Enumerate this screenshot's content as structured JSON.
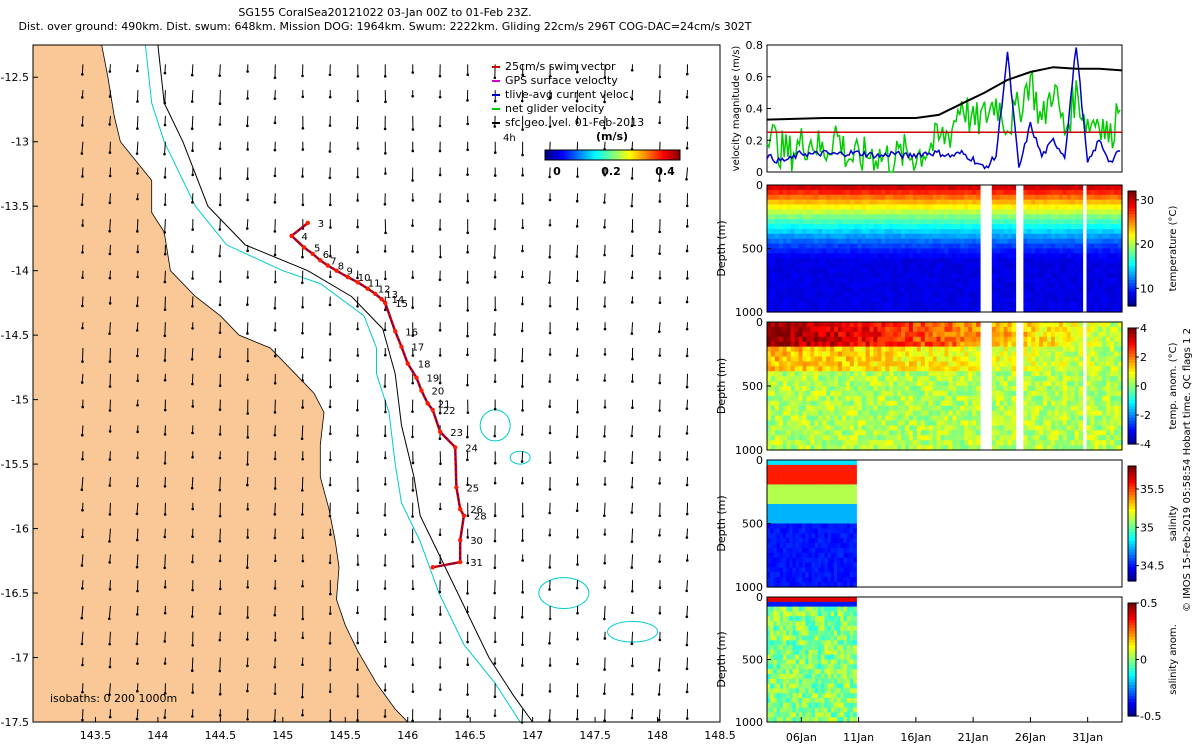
{
  "title": {
    "line1": "SG155 CoralSea20121022 03-Jan 00Z to 01-Feb 23Z.",
    "line2": "Dist. over ground: 490km. Dist. swum: 648km. Mission DOG: 1964km. Swum: 2222km. Gliding 22cm/s 296T COG-DAC=24cm/s 302T"
  },
  "footer_credit": "© IMOS 15-Feb-2019 05:58:54 Hobart time. QC flags 1 2",
  "chart_data": [
    {
      "type": "scatter",
      "name": "map",
      "xlim": [
        143.0,
        148.5
      ],
      "ylim": [
        -17.5,
        -12.25
      ],
      "x_ticks": [
        "143.5",
        "144",
        "144.5",
        "145",
        "145.5",
        "146",
        "146.5",
        "147",
        "147.5",
        "148",
        "148.5"
      ],
      "y_ticks": [
        "-12.5",
        "-13",
        "-13.5",
        "-14",
        "-14.5",
        "-15",
        "-15.5",
        "-16",
        "-16.5",
        "-17",
        "-17.5"
      ],
      "legend": [
        {
          "label": "25cm/s swim vector",
          "color": "#cc0000"
        },
        {
          "label": "GPS surface velocity",
          "color": "#cc00cc"
        },
        {
          "label": "tlive-avg current veloc.",
          "color": "#0000cc"
        },
        {
          "label": "net glider velocity",
          "color": "#00cc00"
        },
        {
          "label": "sfc geo. vel. 01-Feb-2013",
          "color": "#000000"
        }
      ],
      "legend_note": "4h",
      "colorbar": {
        "label": "(m/s)",
        "ticks": [
          "0",
          "0.2",
          "0.4"
        ],
        "range": [
          0,
          0.5
        ]
      },
      "isobath_label": "isobaths: 0   200  1000m",
      "track": [
        {
          "lon": 145.2,
          "lat": -13.63,
          "label": "3"
        },
        {
          "lon": 145.07,
          "lat": -13.73,
          "label": "4"
        },
        {
          "lon": 145.17,
          "lat": -13.82,
          "label": "5"
        },
        {
          "lon": 145.24,
          "lat": -13.87,
          "label": "6"
        },
        {
          "lon": 145.3,
          "lat": -13.92,
          "label": "7"
        },
        {
          "lon": 145.36,
          "lat": -13.96,
          "label": "8"
        },
        {
          "lon": 145.43,
          "lat": -14.0,
          "label": "9"
        },
        {
          "lon": 145.52,
          "lat": -14.05,
          "label": "10"
        },
        {
          "lon": 145.6,
          "lat": -14.09,
          "label": "11"
        },
        {
          "lon": 145.68,
          "lat": -14.14,
          "label": "12"
        },
        {
          "lon": 145.74,
          "lat": -14.18,
          "label": "13"
        },
        {
          "lon": 145.79,
          "lat": -14.22,
          "label": "14"
        },
        {
          "lon": 145.82,
          "lat": -14.25,
          "label": "15"
        },
        {
          "lon": 145.9,
          "lat": -14.47,
          "label": "16"
        },
        {
          "lon": 145.95,
          "lat": -14.59,
          "label": "17"
        },
        {
          "lon": 146.0,
          "lat": -14.72,
          "label": "18"
        },
        {
          "lon": 146.07,
          "lat": -14.83,
          "label": "19"
        },
        {
          "lon": 146.11,
          "lat": -14.93,
          "label": "20"
        },
        {
          "lon": 146.16,
          "lat": -15.03,
          "label": "21"
        },
        {
          "lon": 146.2,
          "lat": -15.08,
          "label": "22"
        },
        {
          "lon": 146.26,
          "lat": -15.25,
          "label": "23"
        },
        {
          "lon": 146.38,
          "lat": -15.37,
          "label": "24"
        },
        {
          "lon": 146.39,
          "lat": -15.68,
          "label": "25"
        },
        {
          "lon": 146.42,
          "lat": -15.85,
          "label": "26"
        },
        {
          "lon": 146.45,
          "lat": -15.9,
          "label": "28"
        },
        {
          "lon": 146.42,
          "lat": -16.09,
          "label": "30"
        },
        {
          "lon": 146.42,
          "lat": -16.26,
          "label": "31"
        },
        {
          "lon": 146.2,
          "lat": -16.3,
          "label": ""
        }
      ]
    },
    {
      "type": "line",
      "name": "velocity",
      "ylabel": "velocity magnitude (m/s)",
      "ylim": [
        0,
        0.8
      ],
      "y_ticks": [
        "0",
        "0.2",
        "0.4",
        "0.6",
        "0.8"
      ],
      "xlim_day": [
        3,
        34
      ],
      "series": [
        {
          "name": "net glider velocity",
          "color": "#00cc00",
          "x": [
            3,
            4,
            5,
            6,
            7,
            8,
            9,
            10,
            11,
            12,
            13,
            14,
            15,
            16,
            17,
            18,
            19,
            20,
            21,
            22,
            23,
            24,
            25,
            26,
            27,
            28,
            29,
            30,
            31,
            32,
            33,
            34
          ],
          "values": [
            0.3,
            0.15,
            0.12,
            0.18,
            0.2,
            0.12,
            0.25,
            0.1,
            0.08,
            0.12,
            0.1,
            0.08,
            0.12,
            0.1,
            0.15,
            0.2,
            0.25,
            0.45,
            0.3,
            0.35,
            0.45,
            0.3,
            0.4,
            0.6,
            0.3,
            0.55,
            0.25,
            0.5,
            0.3,
            0.35,
            0.2,
            0.55
          ]
        },
        {
          "name": "25cm/s swim",
          "color": "#cc0000",
          "x": [
            3,
            34
          ],
          "values": [
            0.25,
            0.25
          ]
        },
        {
          "name": "current",
          "color": "#0000cc",
          "x": [
            3,
            4,
            5,
            6,
            7,
            8,
            9,
            10,
            11,
            12,
            13,
            14,
            15,
            16,
            17,
            18,
            19,
            20,
            21,
            22,
            23,
            24,
            25,
            26,
            27,
            28,
            29,
            30,
            31,
            32,
            33,
            34
          ],
          "values": [
            0.1,
            0.07,
            0.08,
            0.12,
            0.11,
            0.12,
            0.11,
            0.12,
            0.12,
            0.11,
            0.1,
            0.12,
            0.1,
            0.11,
            0.12,
            0.12,
            0.1,
            0.12,
            0.08,
            0.02,
            0.1,
            0.75,
            0.02,
            0.3,
            0.1,
            0.2,
            0.1,
            0.8,
            0.05,
            0.2,
            0.06,
            0.15
          ]
        },
        {
          "name": "mission",
          "color": "#000000",
          "x": [
            3,
            8,
            12,
            16,
            18,
            20,
            22,
            24,
            26,
            28,
            30,
            32,
            34
          ],
          "values": [
            0.33,
            0.34,
            0.34,
            0.34,
            0.36,
            0.43,
            0.5,
            0.58,
            0.63,
            0.66,
            0.65,
            0.65,
            0.64
          ]
        }
      ]
    },
    {
      "type": "heatmap",
      "name": "temperature",
      "ylabel": "Depth (m)",
      "colorbar_label": "temperature (°C)",
      "y_ticks": [
        "0",
        "500",
        "1000"
      ],
      "cbar_ticks": [
        "30",
        "20",
        "10"
      ],
      "cbar_range": [
        6,
        32
      ]
    },
    {
      "type": "heatmap",
      "name": "temp_anom",
      "ylabel": "Depth (m)",
      "colorbar_label": "temp. anom. (°C)",
      "y_ticks": [
        "0",
        "500",
        "1000"
      ],
      "cbar_ticks": [
        "4",
        "2",
        "0",
        "-2",
        "-4"
      ],
      "cbar_range": [
        -4,
        4
      ]
    },
    {
      "type": "heatmap",
      "name": "salinity",
      "ylabel": "Depth (m)",
      "colorbar_label": "salinity",
      "y_ticks": [
        "0",
        "500",
        "1000"
      ],
      "cbar_ticks": [
        "35.5",
        "35",
        "34.5"
      ],
      "cbar_range": [
        34.3,
        35.8
      ]
    },
    {
      "type": "heatmap",
      "name": "salinity_anom",
      "ylabel": "Depth (m)",
      "colorbar_label": "salinity anom.",
      "y_ticks": [
        "0",
        "500",
        "1000"
      ],
      "cbar_ticks": [
        "0.5",
        "0",
        "-0.5"
      ],
      "cbar_range": [
        -0.5,
        0.5
      ]
    },
    {
      "type": "axis",
      "name": "time",
      "x_ticks": [
        "06Jan",
        "11Jan",
        "16Jan",
        "21Jan",
        "26Jan",
        "31Jan"
      ],
      "x_tick_days": [
        6,
        11,
        16,
        21,
        26,
        31
      ]
    }
  ]
}
